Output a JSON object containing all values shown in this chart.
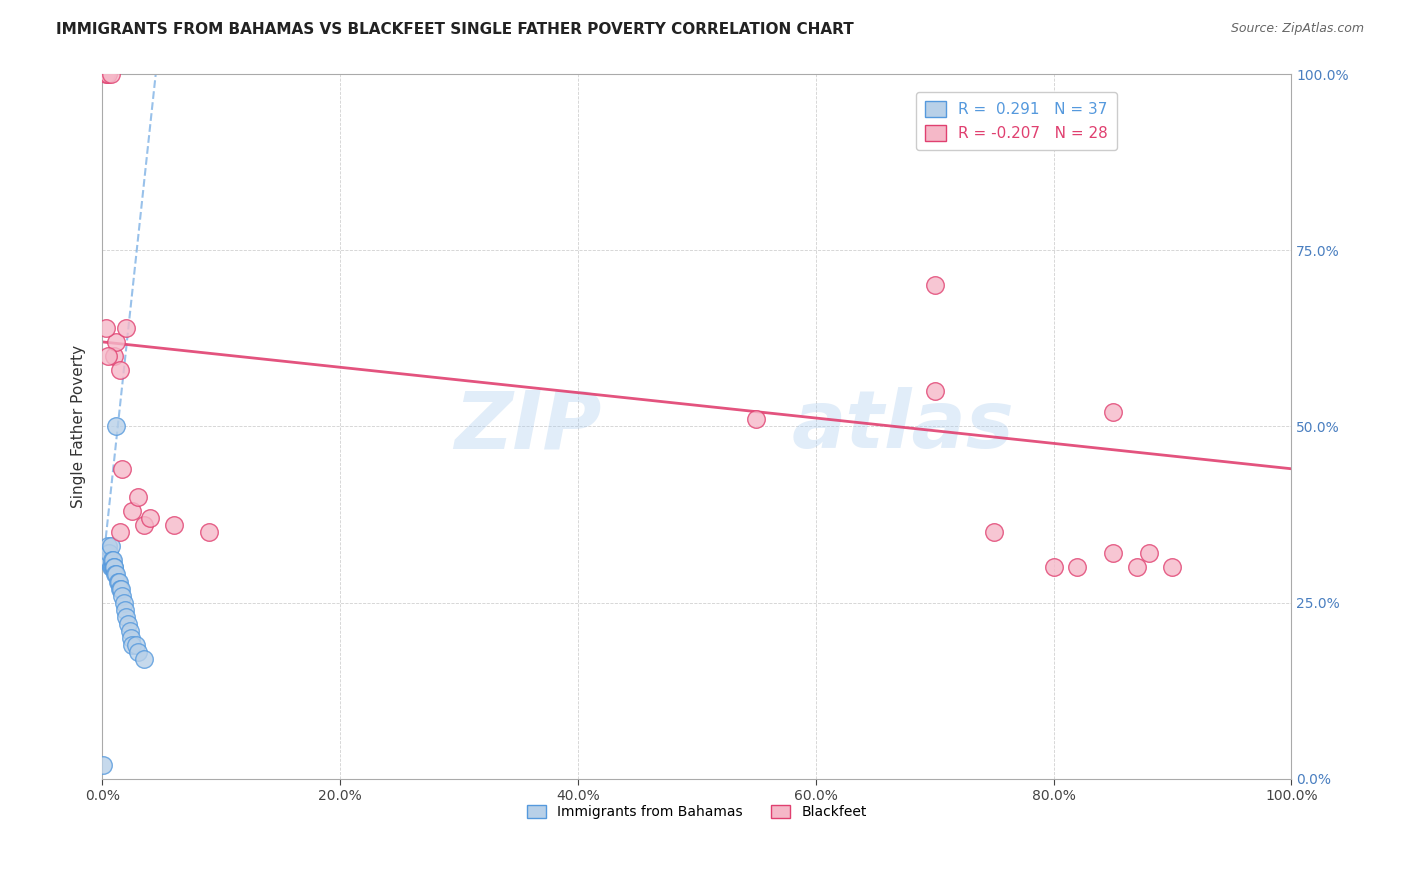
{
  "title": "IMMIGRANTS FROM BAHAMAS VS BLACKFEET SINGLE FATHER POVERTY CORRELATION CHART",
  "source": "Source: ZipAtlas.com",
  "ylabel": "Single Father Poverty",
  "legend_label_blue": "Immigrants from Bahamas",
  "legend_label_pink": "Blackfeet",
  "r_blue": 0.291,
  "n_blue": 37,
  "r_pink": -0.207,
  "n_pink": 28,
  "blue_color": "#b8d0e8",
  "pink_color": "#f5b8c8",
  "trendline_blue_color": "#5599dd",
  "trendline_pink_color": "#e04070",
  "watermark_zip": "ZIP",
  "watermark_atlas": "atlas",
  "xlim": [
    0.0,
    1.0
  ],
  "ylim": [
    0.0,
    1.0
  ],
  "xticks": [
    0.0,
    0.2,
    0.4,
    0.6,
    0.8,
    1.0
  ],
  "yticks": [
    0.0,
    0.25,
    0.5,
    0.75,
    1.0
  ],
  "xtick_labels": [
    "0.0%",
    "20.0%",
    "40.0%",
    "60.0%",
    "80.0%",
    "100.0%"
  ],
  "ytick_labels_right": [
    "0.0%",
    "25.0%",
    "50.0%",
    "75.0%",
    "100.0%"
  ],
  "blue_x": [
    0.001,
    0.002,
    0.002,
    0.003,
    0.003,
    0.004,
    0.004,
    0.005,
    0.005,
    0.006,
    0.006,
    0.007,
    0.007,
    0.008,
    0.008,
    0.009,
    0.009,
    0.01,
    0.01,
    0.011,
    0.012,
    0.013,
    0.014,
    0.015,
    0.016,
    0.017,
    0.018,
    0.019,
    0.02,
    0.022,
    0.023,
    0.024,
    0.025,
    0.028,
    0.03,
    0.012,
    0.035
  ],
  "blue_y": [
    0.02,
    0.31,
    0.32,
    0.31,
    0.32,
    0.31,
    0.32,
    0.31,
    0.33,
    0.31,
    0.32,
    0.3,
    0.33,
    0.3,
    0.31,
    0.3,
    0.31,
    0.3,
    0.3,
    0.29,
    0.29,
    0.28,
    0.28,
    0.27,
    0.27,
    0.26,
    0.25,
    0.24,
    0.23,
    0.22,
    0.21,
    0.2,
    0.19,
    0.19,
    0.18,
    0.5,
    0.17
  ],
  "pink_x": [
    0.003,
    0.005,
    0.007,
    0.01,
    0.012,
    0.015,
    0.017,
    0.02,
    0.025,
    0.03,
    0.035,
    0.04,
    0.7,
    0.75,
    0.8,
    0.82,
    0.85,
    0.87,
    0.9,
    0.003,
    0.005,
    0.015,
    0.06,
    0.09,
    0.55,
    0.7,
    0.85,
    0.88
  ],
  "pink_y": [
    1.0,
    1.0,
    1.0,
    0.6,
    0.62,
    0.58,
    0.44,
    0.64,
    0.38,
    0.4,
    0.36,
    0.37,
    0.55,
    0.35,
    0.3,
    0.3,
    0.52,
    0.3,
    0.3,
    0.64,
    0.6,
    0.35,
    0.36,
    0.35,
    0.51,
    0.7,
    0.32,
    0.32
  ],
  "blue_trend_x0": 0.0,
  "blue_trend_y0": 0.295,
  "blue_trend_x1": 0.045,
  "blue_trend_y1": 1.0,
  "pink_trend_x0": 0.0,
  "pink_trend_y0": 0.62,
  "pink_trend_x1": 1.0,
  "pink_trend_y1": 0.44
}
